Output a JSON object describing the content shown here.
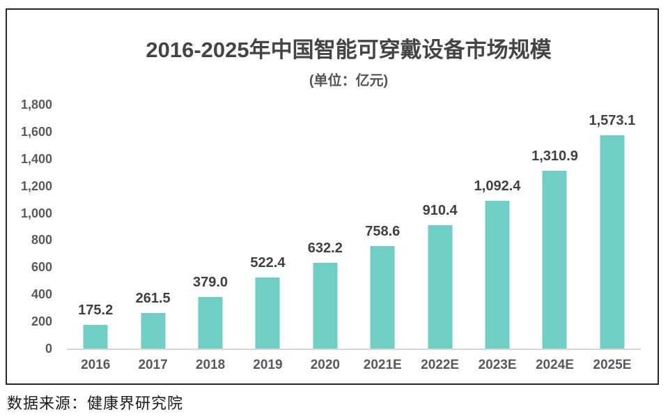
{
  "source": "数据来源：健康界研究院",
  "colors": {
    "bar": "#70cfc5",
    "baseline": "#d6d6d6",
    "frame_border": "#262626",
    "title_text": "#444444",
    "value_text": "#404040",
    "tick_text": "#595959"
  },
  "chart_data": {
    "type": "bar",
    "title": "2016-2025年中国智能可穿戴设备市场规模",
    "subtitle": "(单位：亿元)",
    "xlabel": "",
    "ylabel": "",
    "categories": [
      "2016",
      "2017",
      "2018",
      "2019",
      "2020",
      "2021E",
      "2022E",
      "2023E",
      "2024E",
      "2025E"
    ],
    "values": [
      175.2,
      261.5,
      379.0,
      522.4,
      632.2,
      758.6,
      910.4,
      1092.4,
      1310.9,
      1573.1
    ],
    "value_labels": [
      "175.2",
      "261.5",
      "379.0",
      "522.4",
      "632.2",
      "758.6",
      "910.4",
      "1,092.4",
      "1,310.9",
      "1,573.1"
    ],
    "ylim": [
      0,
      1800
    ],
    "yticks": [
      "0",
      "200",
      "400",
      "600",
      "800",
      "1,000",
      "1,200",
      "1,400",
      "1,600",
      "1,800"
    ],
    "grid": false,
    "legend": false
  }
}
